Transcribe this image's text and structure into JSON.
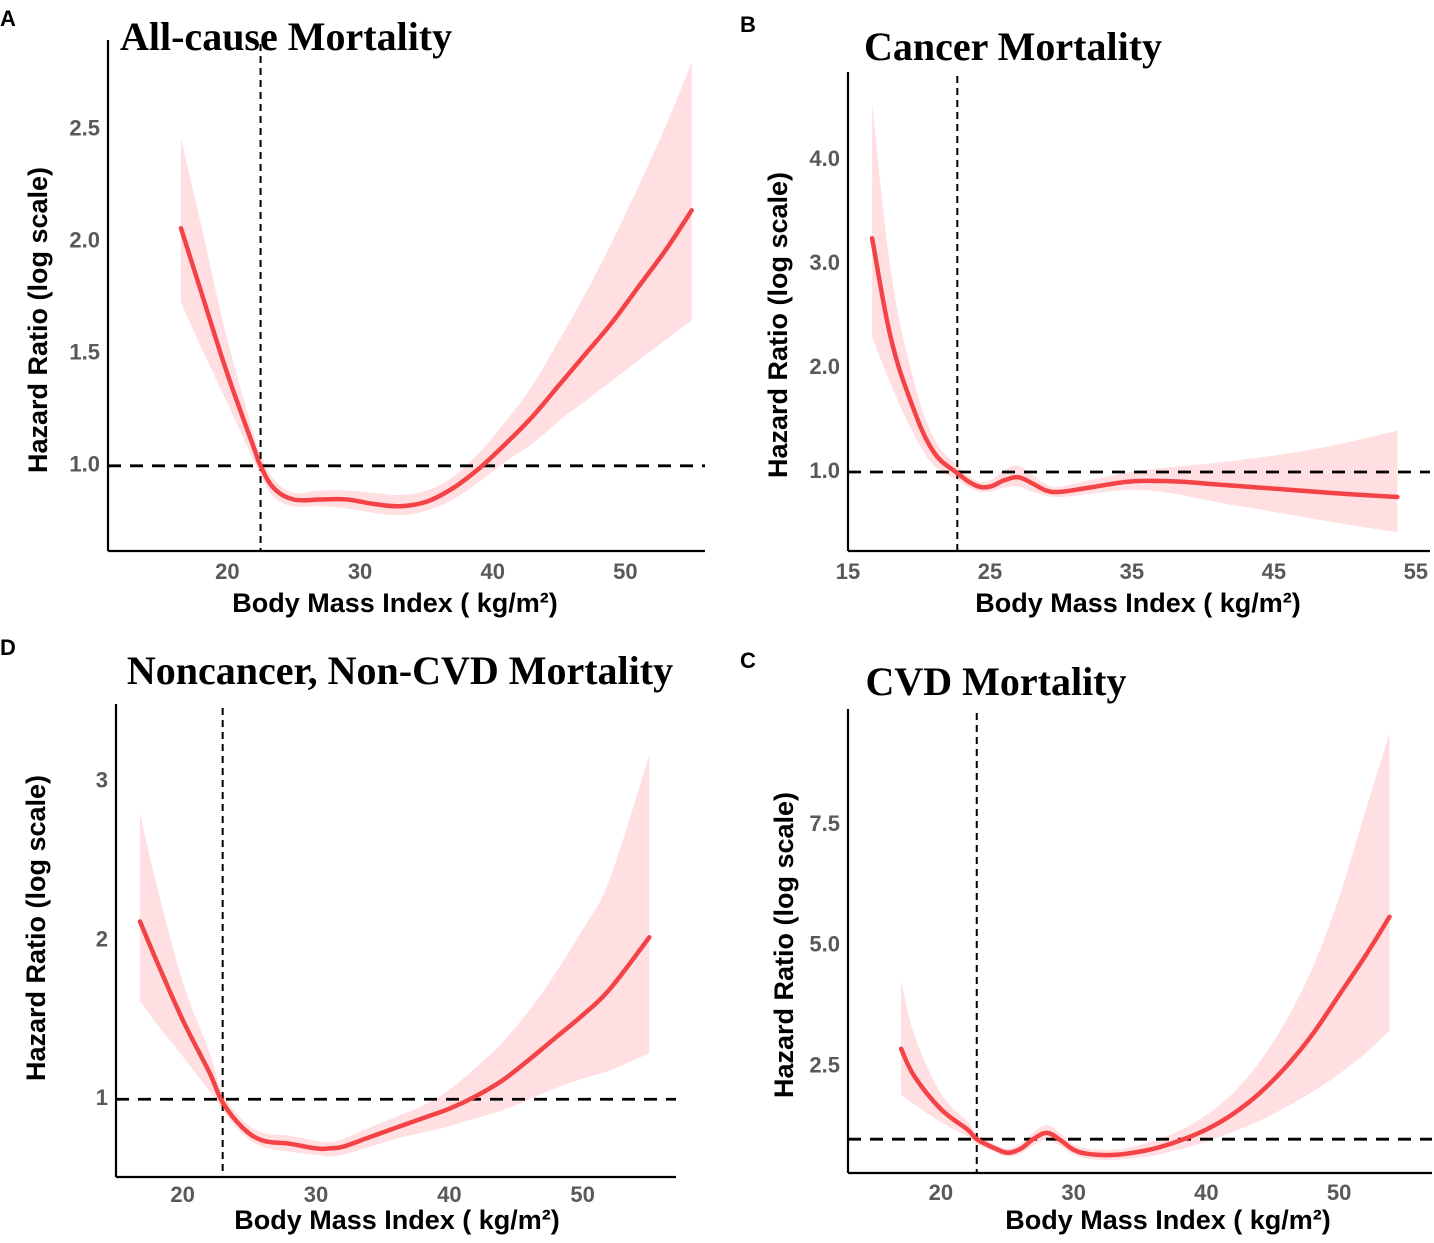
{
  "chart_data": [
    {
      "panel": "A",
      "type": "line",
      "title": "All-cause Mortality",
      "xlabel": "Body Mass Index ( kg/m²)",
      "ylabel": "Hazard Ratio (log scale)",
      "xlim": [
        11,
        56
      ],
      "ylim": [
        0.62,
        2.9
      ],
      "xticks": [
        20,
        30,
        40,
        50
      ],
      "xtick_labels": [
        "20",
        "30",
        "40",
        "50"
      ],
      "yticks": [
        1.0,
        1.5,
        2.0,
        2.5
      ],
      "ytick_labels": [
        "1.0",
        "1.5",
        "2.0",
        "2.5"
      ],
      "ref_x": 22.5,
      "ref_y": 1.0,
      "line_color": "#f44346",
      "band_color": "#ffdfe1",
      "x": [
        16.5,
        18,
        20,
        22,
        22.5,
        23.5,
        25,
        27,
        29,
        31,
        33,
        35,
        37,
        39,
        41,
        43,
        45,
        47,
        49,
        51,
        53,
        55
      ],
      "y": [
        2.06,
        1.78,
        1.41,
        1.08,
        1.0,
        0.9,
        0.85,
        0.85,
        0.85,
        0.83,
        0.82,
        0.84,
        0.9,
        0.99,
        1.1,
        1.22,
        1.36,
        1.5,
        1.64,
        1.8,
        1.96,
        2.14
      ],
      "lower": [
        1.73,
        1.53,
        1.28,
        1.02,
        0.96,
        0.86,
        0.82,
        0.82,
        0.81,
        0.79,
        0.78,
        0.8,
        0.85,
        0.93,
        1.02,
        1.1,
        1.2,
        1.29,
        1.38,
        1.47,
        1.56,
        1.65
      ],
      "upper": [
        2.46,
        2.08,
        1.56,
        1.14,
        1.05,
        0.94,
        0.88,
        0.89,
        0.89,
        0.88,
        0.87,
        0.89,
        0.95,
        1.06,
        1.2,
        1.36,
        1.56,
        1.77,
        2.0,
        2.25,
        2.51,
        2.8
      ]
    },
    {
      "panel": "B",
      "type": "line",
      "title": "Cancer Mortality",
      "xlabel": "Body Mass Index ( kg/m²)",
      "ylabel": "Hazard Ratio (log scale)",
      "xlim": [
        15,
        56
      ],
      "ylim": [
        0.24,
        4.85
      ],
      "xticks": [
        15,
        25,
        35,
        45,
        55
      ],
      "xtick_labels": [
        "15",
        "25",
        "35",
        "45",
        "55"
      ],
      "yticks": [
        1.0,
        2.0,
        3.0,
        4.0
      ],
      "ytick_labels": [
        "1.0",
        "2.0",
        "3.0",
        "4.0"
      ],
      "ref_x": 22.7,
      "ref_y": 1.0,
      "line_color": "#f44346",
      "band_color": "#ffdfe1",
      "x": [
        16.7,
        18,
        19.5,
        21,
        22.7,
        24,
        25,
        26,
        27,
        28,
        29,
        30,
        32,
        35,
        38,
        41,
        44,
        47,
        50,
        53.7
      ],
      "y": [
        3.25,
        2.3,
        1.65,
        1.2,
        0.99,
        0.87,
        0.86,
        0.92,
        0.95,
        0.89,
        0.82,
        0.81,
        0.85,
        0.91,
        0.91,
        0.88,
        0.85,
        0.82,
        0.79,
        0.76
      ],
      "lower": [
        2.3,
        1.85,
        1.4,
        1.07,
        0.92,
        0.82,
        0.81,
        0.85,
        0.86,
        0.81,
        0.77,
        0.76,
        0.79,
        0.83,
        0.79,
        0.71,
        0.64,
        0.57,
        0.5,
        0.42
      ],
      "upper": [
        4.55,
        2.95,
        1.95,
        1.34,
        1.06,
        0.92,
        0.92,
        1.02,
        1.06,
        0.97,
        0.88,
        0.86,
        0.92,
        1.0,
        1.05,
        1.09,
        1.14,
        1.2,
        1.28,
        1.4
      ]
    },
    {
      "panel": "D",
      "type": "line",
      "title": "Noncancer, Non-CVD Mortality",
      "xlabel": "Body Mass Index ( kg/m²)",
      "ylabel": "Hazard Ratio (log scale)",
      "xlim": [
        15,
        57
      ],
      "ylim": [
        0.51,
        3.49
      ],
      "xticks": [
        20,
        30,
        40,
        50
      ],
      "xtick_labels": [
        "20",
        "30",
        "40",
        "50"
      ],
      "yticks": [
        1,
        2,
        3
      ],
      "ytick_labels": [
        "1",
        "2",
        "3"
      ],
      "ref_x": 23,
      "ref_y": 1.0,
      "line_color": "#f44346",
      "band_color": "#ffdfe1",
      "x": [
        16.8,
        18,
        20,
        22,
        23,
        24.5,
        26,
        28,
        30,
        31,
        32,
        34,
        36,
        38,
        40,
        42,
        44,
        46,
        48,
        50,
        52,
        55
      ],
      "y": [
        2.12,
        1.88,
        1.5,
        1.17,
        0.98,
        0.82,
        0.74,
        0.72,
        0.69,
        0.69,
        0.7,
        0.76,
        0.82,
        0.88,
        0.94,
        1.02,
        1.12,
        1.25,
        1.39,
        1.53,
        1.69,
        2.02
      ],
      "lower": [
        1.62,
        1.48,
        1.27,
        1.05,
        0.93,
        0.78,
        0.7,
        0.67,
        0.65,
        0.64,
        0.65,
        0.7,
        0.75,
        0.79,
        0.83,
        0.88,
        0.93,
        1.0,
        1.07,
        1.13,
        1.18,
        1.29
      ],
      "upper": [
        2.8,
        2.37,
        1.74,
        1.3,
        1.04,
        0.87,
        0.79,
        0.77,
        0.74,
        0.73,
        0.75,
        0.82,
        0.89,
        0.96,
        1.06,
        1.2,
        1.36,
        1.56,
        1.8,
        2.07,
        2.38,
        3.17
      ]
    },
    {
      "panel": "C",
      "type": "line",
      "title": "CVD Mortality",
      "xlabel": "Body Mass Index ( kg/m²)",
      "ylabel": "Hazard Ratio (log scale)",
      "xlim": [
        13,
        57
      ],
      "ylim": [
        0.3,
        9.9
      ],
      "xticks": [
        20,
        30,
        40,
        50
      ],
      "xtick_labels": [
        "20",
        "30",
        "40",
        "50"
      ],
      "yticks": [
        2.5,
        5.0,
        7.5
      ],
      "ytick_labels": [
        "2.5",
        "5.0",
        "7.5"
      ],
      "ref_x": 22.7,
      "ref_y": 1.0,
      "line_color": "#f44346",
      "band_color": "#ffdfe1",
      "x": [
        17,
        18,
        20,
        22,
        22.7,
        24,
        25,
        26,
        27,
        28,
        29,
        30,
        31,
        32.5,
        34,
        36,
        38,
        40,
        42,
        44,
        46,
        48,
        50,
        52,
        53.8
      ],
      "y": [
        2.87,
        2.3,
        1.62,
        1.2,
        1.0,
        0.82,
        0.72,
        0.8,
        1.01,
        1.13,
        0.98,
        0.78,
        0.7,
        0.67,
        0.7,
        0.8,
        0.97,
        1.2,
        1.52,
        1.95,
        2.5,
        3.17,
        3.98,
        4.8,
        5.6
      ],
      "lower": [
        1.92,
        1.72,
        1.35,
        1.05,
        0.9,
        0.74,
        0.64,
        0.7,
        0.88,
        0.99,
        0.86,
        0.68,
        0.6,
        0.57,
        0.59,
        0.66,
        0.79,
        0.95,
        1.15,
        1.38,
        1.66,
        1.98,
        2.35,
        2.78,
        3.25
      ],
      "upper": [
        4.3,
        3.15,
        1.95,
        1.36,
        1.1,
        0.9,
        0.81,
        0.91,
        1.15,
        1.29,
        1.12,
        0.89,
        0.81,
        0.78,
        0.82,
        0.96,
        1.18,
        1.5,
        1.95,
        2.6,
        3.45,
        4.55,
        6.0,
        7.8,
        9.4
      ]
    }
  ]
}
